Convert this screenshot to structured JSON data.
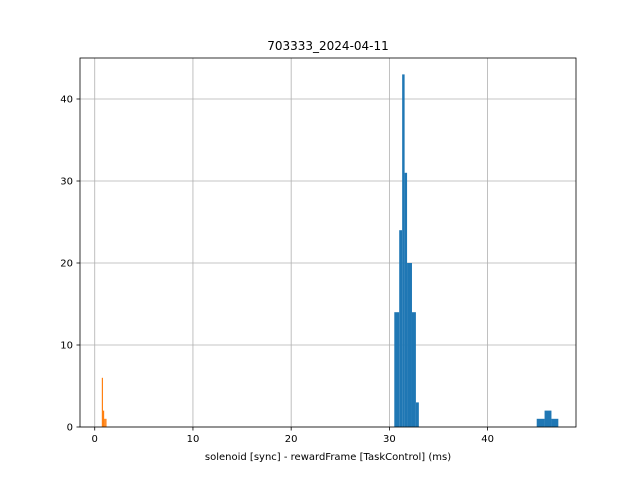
{
  "chart_data": {
    "type": "bar",
    "title": "703333_2024-04-11",
    "xlabel": "solenoid [sync] - rewardFrame [TaskControl] (ms)",
    "ylabel": "",
    "xlim": [
      -1.5,
      49
    ],
    "ylim": [
      0,
      45
    ],
    "xticks": [
      0,
      10,
      20,
      30,
      40
    ],
    "yticks": [
      0,
      10,
      20,
      30,
      40
    ],
    "grid": true,
    "series": [
      {
        "color": "#1f77b4",
        "bins": [
          {
            "x0": 30.5,
            "x1": 31.0,
            "count": 14
          },
          {
            "x0": 31.0,
            "x1": 31.3,
            "count": 24
          },
          {
            "x0": 31.3,
            "x1": 31.55,
            "count": 43
          },
          {
            "x0": 31.55,
            "x1": 31.8,
            "count": 31
          },
          {
            "x0": 31.8,
            "x1": 32.3,
            "count": 20
          },
          {
            "x0": 32.3,
            "x1": 32.7,
            "count": 14
          },
          {
            "x0": 32.7,
            "x1": 33.0,
            "count": 3
          },
          {
            "x0": 45.0,
            "x1": 45.8,
            "count": 1
          },
          {
            "x0": 45.8,
            "x1": 46.5,
            "count": 2
          },
          {
            "x0": 46.5,
            "x1": 47.2,
            "count": 1
          }
        ]
      },
      {
        "color": "#ff7f0e",
        "bins": [
          {
            "x0": 0.72,
            "x1": 0.84,
            "count": 6
          },
          {
            "x0": 0.84,
            "x1": 0.96,
            "count": 2
          },
          {
            "x0": 0.96,
            "x1": 1.08,
            "count": 1
          },
          {
            "x0": 1.08,
            "x1": 1.2,
            "count": 1
          }
        ]
      }
    ]
  }
}
